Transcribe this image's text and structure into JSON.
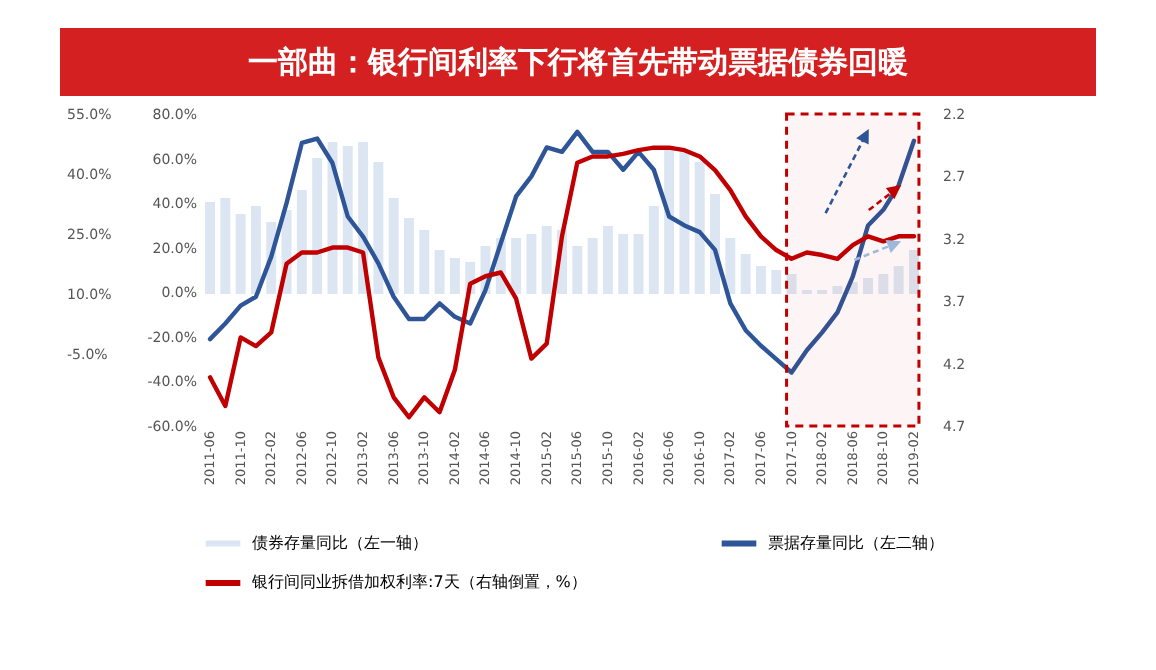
{
  "chart_data": {
    "type": "bar",
    "title": "一部曲：银行间利率下行将首先带动票据债券回暖",
    "categories": [
      "2011-06",
      null,
      "2011-10",
      null,
      "2012-02",
      null,
      "2012-06",
      null,
      "2012-10",
      null,
      "2013-02",
      null,
      "2013-06",
      null,
      "2013-10",
      null,
      "2014-02",
      null,
      "2014-06",
      null,
      "2014-10",
      null,
      "2015-02",
      null,
      "2015-06",
      null,
      "2015-10",
      null,
      "2016-02",
      null,
      "2016-06",
      null,
      "2016-10",
      null,
      "2017-02",
      null,
      "2017-06",
      null,
      "2017-10",
      null,
      "2018-02",
      null,
      "2018-06",
      null,
      "2018-10",
      null,
      "2019-02"
    ],
    "series": [
      {
        "name": "债券存量同比（左一轴）",
        "axis": "y3",
        "color": "#dce6f2",
        "base": [
          10,
          10,
          10,
          10,
          10,
          10,
          10,
          10,
          10,
          10,
          10,
          10,
          10,
          10,
          10,
          10,
          10,
          10,
          10,
          10,
          10,
          10,
          10,
          10,
          10,
          10,
          10,
          10,
          10,
          10,
          10,
          10,
          10,
          10,
          10,
          10,
          10,
          10,
          10,
          10,
          10,
          10,
          10,
          10,
          10,
          10,
          10
        ],
        "values": [
          23,
          24,
          20,
          22,
          18,
          21,
          26,
          34,
          38,
          37,
          38,
          33,
          24,
          19,
          16,
          11,
          9,
          8,
          12,
          14,
          14,
          15,
          17,
          16,
          12,
          14,
          17,
          15,
          15,
          22,
          36,
          36,
          33,
          25,
          14,
          10,
          7,
          6,
          5,
          1,
          1,
          2,
          3,
          4,
          5,
          7,
          11
        ]
      },
      {
        "name": "票据存量同比（左二轴）",
        "type": "line",
        "axis": "y",
        "color": "#2e5597",
        "values": [
          -21,
          -14,
          -6,
          -2,
          16,
          40,
          67,
          69,
          58,
          34,
          25,
          13,
          -2,
          -12,
          -12,
          -5,
          -11,
          -14,
          1,
          22,
          43,
          52,
          65,
          63,
          72,
          63,
          63,
          55,
          63,
          55,
          34,
          30,
          27,
          19,
          -5,
          -17,
          -24,
          -30,
          -36,
          -26,
          -18,
          -9,
          7,
          30,
          37,
          48,
          68
        ]
      },
      {
        "name": "银行间同业拆借加权利率:7天（右轴倒置，%）",
        "type": "line",
        "axis": "y2",
        "color": "#c00000",
        "values": [
          4.31,
          4.54,
          3.99,
          4.06,
          3.95,
          3.4,
          3.31,
          3.31,
          3.27,
          3.27,
          3.31,
          4.15,
          4.47,
          4.63,
          4.47,
          4.59,
          4.25,
          3.56,
          3.5,
          3.47,
          3.68,
          4.16,
          4.04,
          3.18,
          2.59,
          2.54,
          2.54,
          2.52,
          2.49,
          2.47,
          2.47,
          2.49,
          2.54,
          2.65,
          2.81,
          3.02,
          3.18,
          3.29,
          3.36,
          3.31,
          3.33,
          3.36,
          3.25,
          3.18,
          3.22,
          3.18,
          3.18
        ]
      }
    ],
    "ylim": [
      -60,
      80
    ],
    "yticks": [
      {
        "value": 80,
        "label": "80.0%"
      },
      {
        "value": 60,
        "label": "60.0%"
      },
      {
        "value": 40,
        "label": "40.0%"
      },
      {
        "value": 20,
        "label": "20.0%"
      },
      {
        "value": 0,
        "label": "0.0%"
      },
      {
        "value": -20,
        "label": "-20.0%"
      },
      {
        "value": -40,
        "label": "-40.0%"
      },
      {
        "value": -60,
        "label": "-60.0%"
      }
    ],
    "y2lim": [
      4.7,
      2.2
    ],
    "y2ticks": [
      2.2,
      2.7,
      3.2,
      3.7,
      4.2,
      4.7
    ],
    "y3lim": [
      -23,
      55
    ],
    "y3ticks": [
      {
        "value": 55,
        "label": "55.0%"
      },
      {
        "value": 40,
        "label": "40.0%"
      },
      {
        "value": 25,
        "label": "25.0%"
      },
      {
        "value": 10,
        "label": "10.0%"
      },
      {
        "value": -5,
        "label": "-5.0%"
      }
    ],
    "bands": [
      {
        "axis": "x",
        "from": "2017-10",
        "to": "2019-02",
        "color": "#c00000"
      }
    ],
    "legend": "bottom",
    "grid": false
  }
}
